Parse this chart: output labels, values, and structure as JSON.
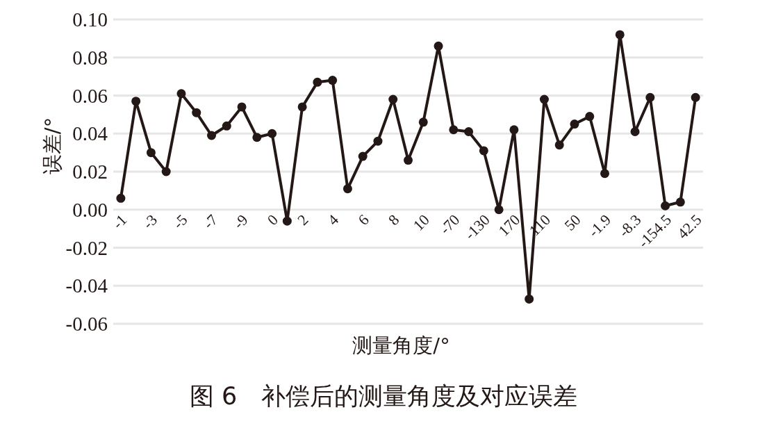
{
  "chart_data": {
    "type": "line",
    "xlabel": "测量角度/°",
    "ylabel": "误差/°",
    "annotations": [
      "图 6　补偿后的测量角度及对应误差"
    ],
    "categories": [
      "-1",
      null,
      "-3",
      null,
      "-5",
      null,
      "-7",
      null,
      "-9",
      null,
      "0",
      null,
      "2",
      null,
      "4",
      null,
      "6",
      null,
      "8",
      null,
      "10",
      null,
      "-70",
      null,
      "-130",
      null,
      "170",
      null,
      "110",
      null,
      "50",
      null,
      "-1.9",
      null,
      "-8.3",
      null,
      "-154.5",
      null,
      "42.5"
    ],
    "series": [
      {
        "color": "#231815",
        "values": [
          0.006,
          0.057,
          0.03,
          0.02,
          0.061,
          0.051,
          0.039,
          0.044,
          0.054,
          0.038,
          0.04,
          -0.006,
          0.054,
          0.067,
          0.068,
          0.011,
          0.028,
          0.036,
          0.058,
          0.026,
          0.046,
          0.086,
          0.042,
          0.041,
          0.031,
          0.0,
          0.042,
          -0.047,
          0.058,
          0.034,
          0.045,
          0.049,
          0.019,
          0.092,
          0.041,
          0.059,
          0.002,
          0.004,
          0.059
        ]
      }
    ],
    "ylim": [
      -0.06,
      0.1
    ],
    "yticks": [
      {
        "value": -0.06,
        "label": "-0.06"
      },
      {
        "value": -0.04,
        "label": "-0.04"
      },
      {
        "value": -0.02,
        "label": "-0.02"
      },
      {
        "value": 0,
        "label": "0.00"
      },
      {
        "value": 0.02,
        "label": "0.02"
      },
      {
        "value": 0.04,
        "label": "0.04"
      },
      {
        "value": 0.06,
        "label": "0.06"
      },
      {
        "value": 0.08,
        "label": "0.08"
      },
      {
        "value": 0.1,
        "label": "0.10"
      }
    ],
    "grid": "y",
    "marker": "circle",
    "line_style": "solid"
  }
}
